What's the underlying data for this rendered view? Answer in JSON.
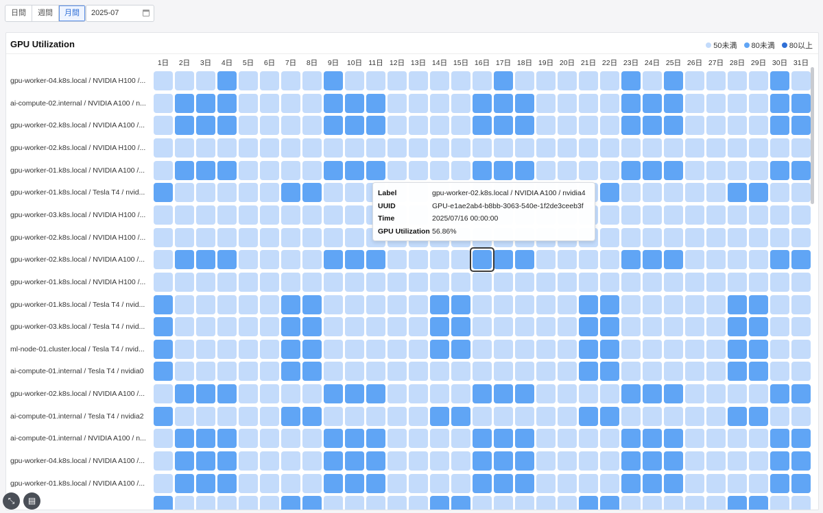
{
  "toolbar": {
    "tabs": [
      {
        "label": "日間",
        "active": false
      },
      {
        "label": "週間",
        "active": false
      },
      {
        "label": "月間",
        "active": true
      }
    ],
    "date_value": "2025-07"
  },
  "panel": {
    "title": "GPU Utilization",
    "legend": [
      {
        "label": "50未満",
        "color": "#c3dbfb"
      },
      {
        "label": "80未満",
        "color": "#60a5f5"
      },
      {
        "label": "80以上",
        "color": "#2f6fd6"
      }
    ]
  },
  "chart_data": {
    "type": "heatmap",
    "days": [
      "1日",
      "2日",
      "3日",
      "4日",
      "5日",
      "6日",
      "7日",
      "8日",
      "9日",
      "10日",
      "11日",
      "12日",
      "13日",
      "14日",
      "15日",
      "16日",
      "17日",
      "18日",
      "19日",
      "20日",
      "21日",
      "22日",
      "23日",
      "24日",
      "25日",
      "26日",
      "27日",
      "28日",
      "29日",
      "30日",
      "31日"
    ],
    "levels": [
      "50未満",
      "80未満",
      "80以上"
    ],
    "rows": [
      {
        "label": "gpu-worker-04.k8s.local / NVIDIA H100 /...",
        "levels": [
          0,
          0,
          0,
          1,
          0,
          0,
          0,
          0,
          1,
          0,
          0,
          0,
          0,
          0,
          0,
          0,
          1,
          0,
          0,
          0,
          0,
          0,
          1,
          0,
          1,
          0,
          0,
          0,
          0,
          1,
          0
        ]
      },
      {
        "label": "ai-compute-02.internal / NVIDIA A100 / n...",
        "levels": [
          0,
          1,
          1,
          1,
          0,
          0,
          0,
          0,
          1,
          1,
          1,
          0,
          0,
          0,
          0,
          1,
          1,
          1,
          0,
          0,
          0,
          0,
          1,
          1,
          1,
          0,
          0,
          0,
          0,
          1,
          1
        ]
      },
      {
        "label": "gpu-worker-02.k8s.local / NVIDIA A100 /...",
        "levels": [
          0,
          1,
          1,
          1,
          0,
          0,
          0,
          0,
          1,
          1,
          1,
          0,
          0,
          0,
          0,
          1,
          1,
          1,
          0,
          0,
          0,
          0,
          1,
          1,
          1,
          0,
          0,
          0,
          0,
          1,
          1
        ]
      },
      {
        "label": "gpu-worker-02.k8s.local / NVIDIA H100 /...",
        "levels": [
          0,
          0,
          0,
          0,
          0,
          0,
          0,
          0,
          0,
          0,
          0,
          0,
          0,
          0,
          0,
          0,
          0,
          0,
          0,
          0,
          0,
          0,
          0,
          0,
          0,
          0,
          0,
          0,
          0,
          0,
          0
        ]
      },
      {
        "label": "gpu-worker-01.k8s.local / NVIDIA A100 /...",
        "levels": [
          0,
          1,
          1,
          1,
          0,
          0,
          0,
          0,
          1,
          1,
          1,
          0,
          0,
          0,
          0,
          1,
          1,
          1,
          0,
          0,
          0,
          0,
          1,
          1,
          1,
          0,
          0,
          0,
          0,
          1,
          1
        ]
      },
      {
        "label": "gpu-worker-01.k8s.local / Tesla T4 / nvid...",
        "levels": [
          1,
          0,
          0,
          0,
          0,
          0,
          1,
          1,
          0,
          0,
          0,
          0,
          0,
          0,
          0,
          0,
          0,
          0,
          0,
          0,
          0,
          1,
          0,
          0,
          0,
          0,
          0,
          1,
          1,
          0,
          0
        ]
      },
      {
        "label": "gpu-worker-03.k8s.local / NVIDIA H100 /...",
        "levels": [
          0,
          0,
          0,
          0,
          0,
          0,
          0,
          0,
          0,
          0,
          0,
          0,
          0,
          0,
          0,
          0,
          0,
          0,
          0,
          0,
          0,
          0,
          0,
          0,
          0,
          0,
          0,
          0,
          0,
          0,
          0
        ]
      },
      {
        "label": "gpu-worker-02.k8s.local / NVIDIA H100 /...",
        "levels": [
          0,
          0,
          0,
          0,
          0,
          0,
          0,
          0,
          0,
          0,
          0,
          0,
          0,
          0,
          0,
          0,
          0,
          0,
          0,
          0,
          0,
          0,
          0,
          0,
          0,
          0,
          0,
          0,
          0,
          0,
          0
        ]
      },
      {
        "label": "gpu-worker-02.k8s.local / NVIDIA A100 /...",
        "levels": [
          0,
          1,
          1,
          1,
          0,
          0,
          0,
          0,
          1,
          1,
          1,
          0,
          0,
          0,
          0,
          1,
          1,
          1,
          0,
          0,
          0,
          0,
          1,
          1,
          1,
          0,
          0,
          0,
          0,
          1,
          1
        ]
      },
      {
        "label": "gpu-worker-01.k8s.local / NVIDIA H100 /...",
        "levels": [
          0,
          0,
          0,
          0,
          0,
          0,
          0,
          0,
          0,
          0,
          0,
          0,
          0,
          0,
          0,
          0,
          0,
          0,
          0,
          0,
          0,
          0,
          0,
          0,
          0,
          0,
          0,
          0,
          0,
          0,
          0
        ]
      },
      {
        "label": "gpu-worker-01.k8s.local / Tesla T4 / nvid...",
        "levels": [
          1,
          0,
          0,
          0,
          0,
          0,
          1,
          1,
          0,
          0,
          0,
          0,
          0,
          1,
          1,
          0,
          0,
          0,
          0,
          0,
          1,
          1,
          0,
          0,
          0,
          0,
          0,
          1,
          1,
          0,
          0
        ]
      },
      {
        "label": "gpu-worker-03.k8s.local / Tesla T4 / nvid...",
        "levels": [
          1,
          0,
          0,
          0,
          0,
          0,
          1,
          1,
          0,
          0,
          0,
          0,
          0,
          1,
          1,
          0,
          0,
          0,
          0,
          0,
          1,
          1,
          0,
          0,
          0,
          0,
          0,
          1,
          1,
          0,
          0
        ]
      },
      {
        "label": "ml-node-01.cluster.local / Tesla T4 / nvid...",
        "levels": [
          1,
          0,
          0,
          0,
          0,
          0,
          1,
          1,
          0,
          0,
          0,
          0,
          0,
          1,
          1,
          0,
          0,
          0,
          0,
          0,
          1,
          1,
          0,
          0,
          0,
          0,
          0,
          1,
          1,
          0,
          0
        ]
      },
      {
        "label": "ai-compute-01.internal / Tesla T4 / nvidia0",
        "levels": [
          1,
          0,
          0,
          0,
          0,
          0,
          1,
          1,
          0,
          0,
          0,
          0,
          0,
          0,
          0,
          0,
          0,
          0,
          0,
          0,
          1,
          1,
          0,
          0,
          0,
          0,
          0,
          1,
          1,
          0,
          0
        ]
      },
      {
        "label": "gpu-worker-02.k8s.local / NVIDIA A100 /...",
        "levels": [
          0,
          1,
          1,
          1,
          0,
          0,
          0,
          0,
          1,
          1,
          1,
          0,
          0,
          0,
          0,
          1,
          1,
          1,
          0,
          0,
          0,
          0,
          1,
          1,
          1,
          0,
          0,
          0,
          0,
          1,
          1
        ]
      },
      {
        "label": "ai-compute-01.internal / Tesla T4 / nvidia2",
        "levels": [
          1,
          0,
          0,
          0,
          0,
          0,
          1,
          1,
          0,
          0,
          0,
          0,
          0,
          1,
          1,
          0,
          0,
          0,
          0,
          0,
          1,
          1,
          0,
          0,
          0,
          0,
          0,
          1,
          1,
          0,
          0
        ]
      },
      {
        "label": "ai-compute-01.internal / NVIDIA A100 / n...",
        "levels": [
          0,
          1,
          1,
          1,
          0,
          0,
          0,
          0,
          1,
          1,
          1,
          0,
          0,
          0,
          0,
          1,
          1,
          1,
          0,
          0,
          0,
          0,
          1,
          1,
          1,
          0,
          0,
          0,
          0,
          1,
          1
        ]
      },
      {
        "label": "gpu-worker-04.k8s.local / NVIDIA A100 /...",
        "levels": [
          0,
          1,
          1,
          1,
          0,
          0,
          0,
          0,
          1,
          1,
          1,
          0,
          0,
          0,
          0,
          1,
          1,
          1,
          0,
          0,
          0,
          0,
          1,
          1,
          1,
          0,
          0,
          0,
          0,
          1,
          1
        ]
      },
      {
        "label": "gpu-worker-01.k8s.local / NVIDIA A100 /...",
        "levels": [
          0,
          1,
          1,
          1,
          0,
          0,
          0,
          0,
          1,
          1,
          1,
          0,
          0,
          0,
          0,
          1,
          1,
          1,
          0,
          0,
          0,
          0,
          1,
          1,
          1,
          0,
          0,
          0,
          0,
          1,
          1
        ]
      },
      {
        "label": "",
        "levels": [
          1,
          0,
          0,
          0,
          0,
          0,
          1,
          1,
          0,
          0,
          0,
          0,
          0,
          1,
          1,
          0,
          0,
          0,
          0,
          0,
          1,
          1,
          0,
          0,
          0,
          0,
          0,
          1,
          1,
          0,
          0
        ]
      }
    ],
    "highlighted": {
      "row": 8,
      "day": 15
    }
  },
  "tooltip": {
    "rows": [
      {
        "key": "Label",
        "value": "gpu-worker-02.k8s.local / NVIDIA A100 / nvidia4"
      },
      {
        "key": "UUID",
        "value": "GPU-e1ae2ab4-b8bb-3063-540e-1f2de3ceeb3f"
      },
      {
        "key": "Time",
        "value": "2025/07/16 00:00:00"
      },
      {
        "key": "GPU Utilization",
        "value": "56.86%"
      }
    ]
  },
  "fabs": [
    {
      "icon": "collapse-icon"
    },
    {
      "icon": "dashboard-icon"
    }
  ]
}
